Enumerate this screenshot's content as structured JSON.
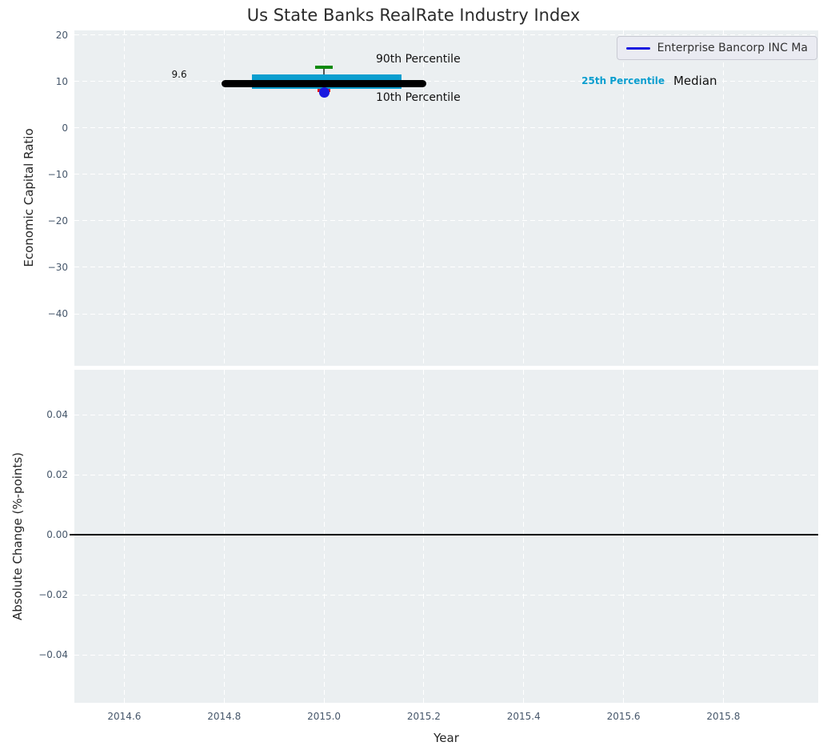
{
  "title": "Us State Banks RealRate Industry Index",
  "legend": {
    "label": "Enterprise Bancorp INC Ma"
  },
  "colors": {
    "figure_bg": "#ffffff",
    "axes_bg": "#ebeff1",
    "grid": "#ffffff",
    "tick_label": "#46576b",
    "title_text": "#2b2b2b",
    "axis_label_text": "#262626",
    "box_fill": "#0a9ecf",
    "median_line": "#000000",
    "whisker_line": "#555555",
    "p90_cap": "#0e8a0e",
    "p10_cap": "#e81414",
    "company_marker": "#1a1ae0",
    "zero_line": "#000000",
    "legend_bg": "#eaebf2",
    "legend_border": "#c9cad3",
    "legend_line": "#1a1ae0"
  },
  "chart_data": [
    {
      "type": "boxplot",
      "title": "Us State Banks RealRate Industry Index",
      "ylabel": "Economic Capital Ratio",
      "x_range": [
        2014.5,
        2015.99
      ],
      "y_range": [
        -51.2,
        21.0
      ],
      "grid": true,
      "legend_position": "upper right",
      "y_ticks": [
        {
          "value": 20,
          "label": "20"
        },
        {
          "value": 10,
          "label": "10"
        },
        {
          "value": 0,
          "label": "0"
        },
        {
          "value": -10,
          "label": "−10"
        },
        {
          "value": -20,
          "label": "−20"
        },
        {
          "value": -30,
          "label": "−30"
        },
        {
          "value": -40,
          "label": "−40"
        }
      ],
      "box": {
        "x_center": 2015.0,
        "p90": 13.1,
        "q3": 11.6,
        "median": 9.6,
        "q1": 8.5,
        "p10": 8.0,
        "box_x0": 2014.855,
        "box_x1": 2015.155,
        "median_x0": 2014.795,
        "median_x1": 2015.205,
        "median_label": "9.6"
      },
      "company_point": {
        "name": "Enterprise Bancorp INC Ma",
        "x": 2015.0,
        "y": 7.7
      },
      "annotations": [
        {
          "text": "90th Percentile",
          "x": 2015.104,
          "y": 14.8,
          "size": 14,
          "weight": "normal",
          "color": "#111111",
          "anchor": "left"
        },
        {
          "text": "10th Percentile",
          "x": 2015.104,
          "y": 6.6,
          "size": 14,
          "weight": "normal",
          "color": "#111111",
          "anchor": "left"
        },
        {
          "text": "9.6",
          "x": 2014.71,
          "y": 11.6,
          "size": 12,
          "weight": "normal",
          "color": "#111111",
          "anchor": "middle"
        },
        {
          "text": "25th Percentile",
          "x": 2015.516,
          "y": 10.2,
          "size": 12,
          "weight": "bold",
          "color": "#0a9ecf",
          "anchor": "left"
        },
        {
          "text": "Median",
          "x": 2015.7,
          "y": 10.2,
          "size": 15,
          "weight": "normal",
          "color": "#111111",
          "anchor": "left"
        }
      ]
    },
    {
      "type": "line",
      "ylabel": "Absolute Change (%-points)",
      "xlabel": "Year",
      "x_range": [
        2014.5,
        2015.99
      ],
      "y_range": [
        -0.056,
        0.055
      ],
      "grid": true,
      "zero_line_y": 0.0,
      "series": [],
      "y_ticks": [
        {
          "value": 0.04,
          "label": "0.04"
        },
        {
          "value": 0.02,
          "label": "0.02"
        },
        {
          "value": 0.0,
          "label": "0.00"
        },
        {
          "value": -0.02,
          "label": "−0.02"
        },
        {
          "value": -0.04,
          "label": "−0.04"
        }
      ],
      "x_ticks": [
        {
          "value": 2014.6,
          "label": "2014.6"
        },
        {
          "value": 2014.8,
          "label": "2014.8"
        },
        {
          "value": 2015.0,
          "label": "2015.0"
        },
        {
          "value": 2015.2,
          "label": "2015.2"
        },
        {
          "value": 2015.4,
          "label": "2015.4"
        },
        {
          "value": 2015.6,
          "label": "2015.6"
        },
        {
          "value": 2015.8,
          "label": "2015.8"
        }
      ]
    }
  ]
}
